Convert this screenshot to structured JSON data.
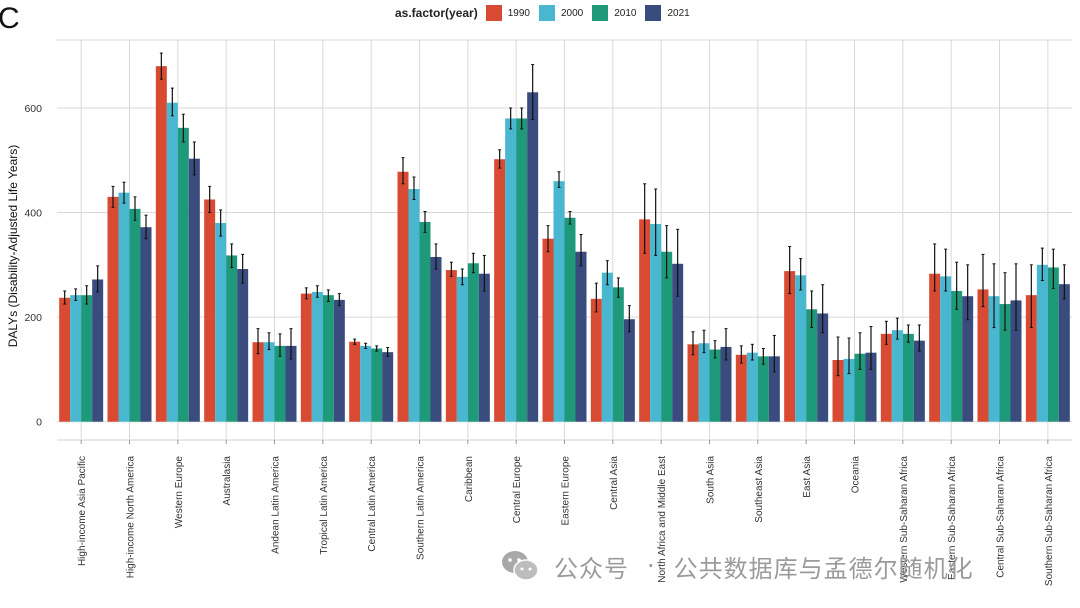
{
  "panel_label": "C",
  "watermark": {
    "icon": "wechat-icon",
    "account": "公众号",
    "sep": "·",
    "name": "公共数据库与孟德尔随机化"
  },
  "colors": {
    "1990": "#D84B32",
    "2000": "#49B7CF",
    "2010": "#1E9A7A",
    "2021": "#3A4B7E",
    "grid": "#D9D9D9",
    "error_bar": "#111111"
  },
  "chart_data": {
    "type": "bar",
    "legend_title": "as.factor(year)",
    "legend_position": "top",
    "grid": true,
    "xlabel": "",
    "ylabel": "DALYs (Disability-Adjusted Life Years)",
    "ylim": [
      -35,
      730
    ],
    "yticks": [
      0,
      200,
      400,
      600
    ],
    "categories": [
      "High-income Asia Pacific",
      "High-income North America",
      "Western Europe",
      "Australasia",
      "Andean Latin America",
      "Tropical Latin America",
      "Central Latin America",
      "Southern Latin America",
      "Caribbean",
      "Central Europe",
      "Eastern Europe",
      "Central Asia",
      "North Africa and Middle East",
      "South Asia",
      "Southeast Asia",
      "East Asia",
      "Oceania",
      "Western Sub-Saharan Africa",
      "Eastern Sub-Saharan Africa",
      "Central Sub-Saharan Africa",
      "Southern Sub-Saharan Africa"
    ],
    "series": [
      {
        "name": "1990",
        "values": [
          237,
          430,
          680,
          425,
          152,
          245,
          153,
          478,
          290,
          502,
          350,
          235,
          387,
          148,
          128,
          288,
          118,
          168,
          283,
          253,
          242
        ],
        "lower": [
          225,
          410,
          655,
          400,
          130,
          235,
          148,
          455,
          278,
          485,
          325,
          210,
          322,
          128,
          112,
          245,
          88,
          148,
          250,
          220,
          180
        ],
        "upper": [
          250,
          450,
          705,
          450,
          178,
          256,
          158,
          505,
          305,
          520,
          375,
          265,
          455,
          172,
          145,
          335,
          162,
          192,
          340,
          320,
          300
        ]
      },
      {
        "name": "2000",
        "values": [
          242,
          438,
          610,
          380,
          152,
          248,
          145,
          445,
          277,
          580,
          460,
          285,
          378,
          150,
          132,
          280,
          120,
          175,
          278,
          240,
          300
        ],
        "lower": [
          232,
          418,
          585,
          355,
          138,
          238,
          140,
          425,
          262,
          560,
          448,
          262,
          318,
          132,
          118,
          252,
          92,
          158,
          250,
          180,
          270
        ],
        "upper": [
          254,
          458,
          638,
          405,
          170,
          260,
          150,
          468,
          292,
          600,
          478,
          308,
          445,
          175,
          148,
          312,
          160,
          198,
          330,
          302,
          332
        ]
      },
      {
        "name": "2010",
        "values": [
          242,
          407,
          562,
          318,
          145,
          242,
          140,
          382,
          303,
          580,
          390,
          257,
          325,
          138,
          125,
          215,
          130,
          168,
          250,
          225,
          295
        ],
        "lower": [
          225,
          385,
          535,
          295,
          125,
          230,
          135,
          362,
          285,
          560,
          378,
          238,
          275,
          122,
          110,
          180,
          100,
          152,
          215,
          175,
          255
        ],
        "upper": [
          260,
          430,
          588,
          340,
          168,
          252,
          145,
          402,
          322,
          600,
          402,
          275,
          375,
          155,
          140,
          250,
          170,
          185,
          305,
          285,
          330
        ]
      },
      {
        "name": "2021",
        "values": [
          272,
          372,
          503,
          292,
          145,
          233,
          133,
          315,
          283,
          630,
          325,
          196,
          302,
          143,
          125,
          207,
          132,
          155,
          240,
          232,
          263
        ],
        "lower": [
          248,
          350,
          472,
          265,
          120,
          222,
          125,
          292,
          250,
          578,
          298,
          172,
          240,
          118,
          95,
          170,
          100,
          135,
          195,
          175,
          235
        ],
        "upper": [
          298,
          395,
          535,
          320,
          178,
          245,
          142,
          340,
          318,
          683,
          358,
          222,
          368,
          178,
          165,
          262,
          182,
          185,
          300,
          302,
          300
        ]
      }
    ]
  }
}
